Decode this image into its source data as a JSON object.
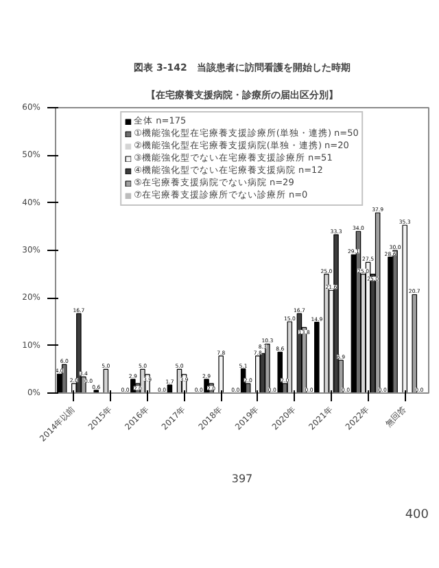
{
  "chart_data": {
    "type": "bar",
    "title": "図表 3-142　当該患者に訪問看護を開始した時期",
    "subtitle": "【在宅療養支援病院・診療所の届出区分別】",
    "categories": [
      "2014年以前",
      "2015年",
      "2016年",
      "2017年",
      "2018年",
      "2019年",
      "2020年",
      "2021年",
      "2022年",
      "無回答"
    ],
    "series": [
      {
        "name": "全体 n=175",
        "color": "#000000",
        "values": [
          4.0,
          0.6,
          2.9,
          1.7,
          2.9,
          5.1,
          8.6,
          14.9,
          29.1,
          28.6
        ],
        "value_labels": [
          "4.0",
          "0.6",
          "2.9",
          "1.7",
          "2.9",
          "5.1",
          "8.6",
          "14.9",
          "29.1",
          "28.6"
        ]
      },
      {
        "name": "①機能強化型在宅療養支援診療所(単独・連携) n=50",
        "color": "#6e6e6e",
        "values": [
          6.0,
          0.0,
          2.0,
          0.0,
          2.0,
          2.0,
          2.0,
          0.0,
          34.0,
          30.0
        ],
        "value_labels": [
          "6.0",
          null,
          "2.0",
          null,
          "2.0",
          "2.0",
          "2.0",
          null,
          "34.0",
          "30.0"
        ]
      },
      {
        "name": "②機能強化型在宅療養支援病院(単独・連携) n=20",
        "color": "#d4d4d4",
        "values": [
          0.0,
          5.0,
          5.0,
          5.0,
          0.0,
          0.0,
          15.0,
          25.0,
          25.0,
          0.0
        ],
        "value_labels": [
          null,
          "5.0",
          "5.0",
          "5.0",
          null,
          null,
          "15.0",
          "25.0",
          "25.0",
          null
        ]
      },
      {
        "name": "③機能強化型でない在宅療養支援診療所 n=51",
        "color": "#f4f4f4",
        "values": [
          2.0,
          0.0,
          3.9,
          3.9,
          7.8,
          7.8,
          0.0,
          21.6,
          27.5,
          35.3
        ],
        "value_labels": [
          "2.0",
          null,
          "3.9",
          "3.9",
          "7.8",
          "7.8",
          null,
          "21.6",
          "27.5",
          "35.3"
        ]
      },
      {
        "name": "④機能強化型でない在宅療養支援病院 n=12",
        "color": "#3c3c3c",
        "values": [
          16.7,
          0.0,
          0.0,
          0.0,
          0.0,
          8.3,
          16.7,
          33.3,
          25.0,
          0.0
        ],
        "value_labels": [
          "16.7",
          null,
          null,
          null,
          null,
          "8.3",
          "16.7",
          "33.3",
          "25.0",
          null
        ]
      },
      {
        "name": "⑤在宅療養支援病院でない病院 n=29",
        "color": "#a0a0a0",
        "values": [
          3.4,
          0.0,
          0.0,
          0.0,
          0.0,
          10.3,
          13.8,
          6.9,
          37.9,
          20.7
        ],
        "value_labels": [
          "3.4",
          null,
          null,
          null,
          null,
          "10.3",
          "13.8",
          "6.9",
          "37.9",
          "20.7"
        ]
      },
      {
        "name": "⑦在宅療養支援診療所でない診療所 n=0",
        "color": "#bcbcbc",
        "values": [
          0.0,
          0.0,
          0.0,
          0.0,
          0.0,
          0.0,
          0.0,
          0.0,
          0.0,
          0.0
        ],
        "value_labels": [
          "0.0",
          "0.0",
          "0.0",
          "0.0",
          "0.0",
          "0.0",
          "0.0",
          "0.0",
          "0.0",
          "0.0"
        ]
      }
    ],
    "ylim": [
      0,
      60
    ],
    "yticks": [
      {
        "value": 0,
        "label": "0%"
      },
      {
        "value": 10,
        "label": "10%"
      },
      {
        "value": 20,
        "label": "20%"
      },
      {
        "value": 30,
        "label": "30%"
      },
      {
        "value": 40,
        "label": "40%"
      },
      {
        "value": 50,
        "label": "50%"
      },
      {
        "value": 60,
        "label": "60%"
      }
    ],
    "grid": false,
    "legend": "top",
    "annotations": [
      "397",
      "400"
    ]
  }
}
